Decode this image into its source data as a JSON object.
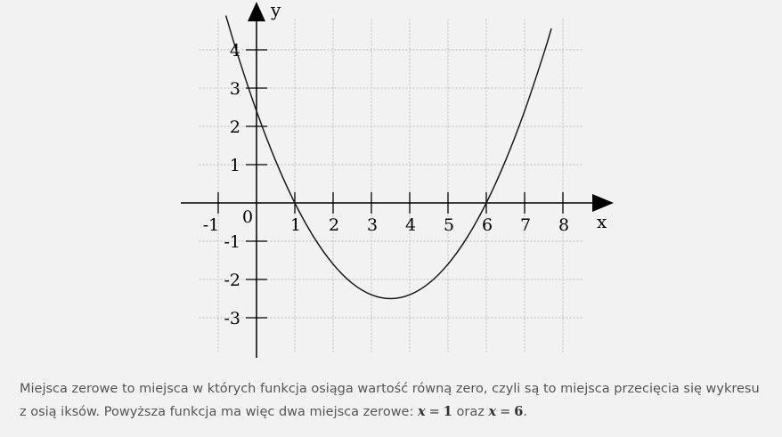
{
  "chart_data": {
    "type": "line",
    "function": "0.4x^2 - 2.8x + 2.4",
    "series": [
      {
        "x": [
          -0.8,
          -0.5,
          0,
          0.5,
          1,
          1.5,
          2,
          2.5,
          3,
          3.5,
          4,
          4.5,
          5,
          5.5,
          6,
          6.5,
          7,
          7.5,
          7.7
        ],
        "y": [
          4.896,
          3.9,
          2.4,
          1.1,
          0,
          -0.9,
          -1.6,
          -2.1,
          -2.4,
          -2.5,
          -2.4,
          -2.1,
          -1.6,
          -0.9,
          0,
          1.1,
          2.4,
          3.9,
          4.56
        ]
      }
    ],
    "x_ticks": [
      -1,
      1,
      2,
      3,
      4,
      5,
      6,
      7,
      8
    ],
    "y_ticks": [
      -3,
      -2,
      -1,
      1,
      2,
      3,
      4
    ],
    "origin_label": "0",
    "xlabel": "x",
    "ylabel": "y",
    "xlim": [
      -1.1,
      8.7
    ],
    "ylim": [
      -4,
      5
    ],
    "grid": true,
    "zeros": [
      1,
      6
    ]
  },
  "caption": {
    "line1": "Miejsca zerowe to miejsca w których funkcja osiąga wartość równą zero, czyli są to miejsca przecięcia się wykresu",
    "line2_pre": "z osią iksów. Powyższa funkcja ma więc dwa miejsca zerowe: ",
    "zero1_var": "x",
    "eq1": "=",
    "zero1_val": "1",
    "conj": " oraz ",
    "zero2_var": "x",
    "eq2": "=",
    "zero2_val": "6",
    "end": "."
  },
  "colors": {
    "curve": "#1a1a1a",
    "axis": "#000000",
    "grid": "#bbbbbb",
    "background": "#f2f2f2",
    "caption_text": "#555555"
  }
}
